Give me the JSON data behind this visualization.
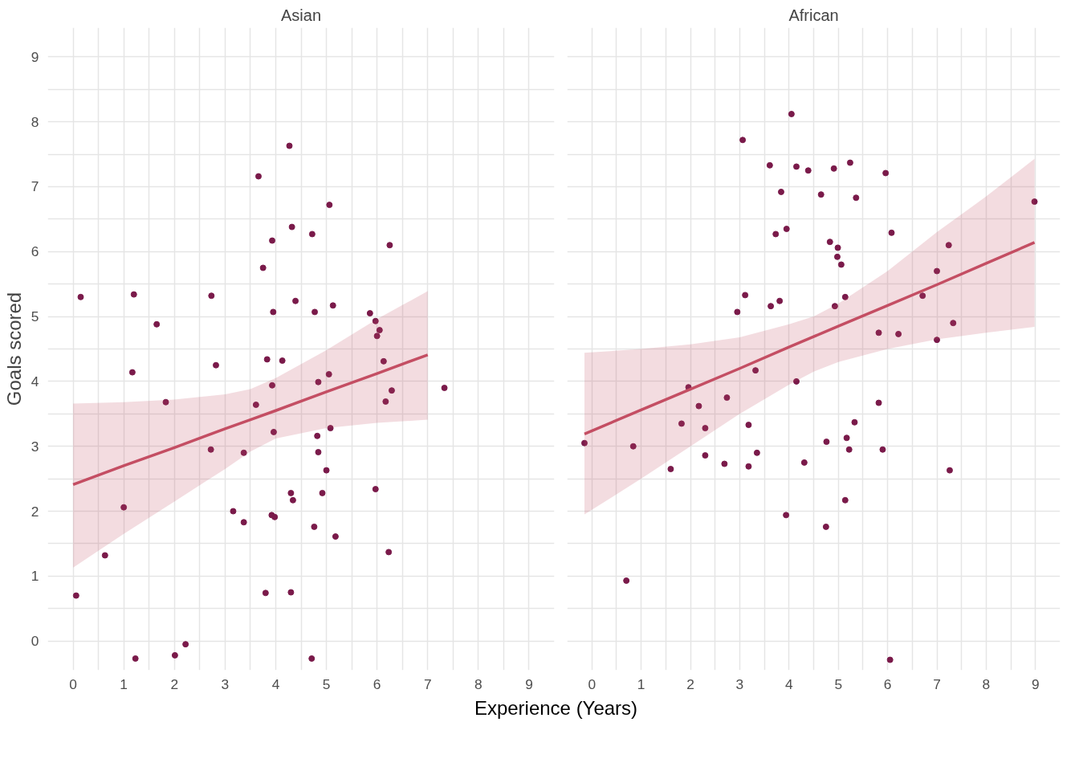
{
  "chart_data": [
    {
      "type": "scatter",
      "title": "Asian",
      "xlabel": "Experience (Years)",
      "ylabel": "Goals scored",
      "grid": true,
      "xlim": [
        -0.5,
        9.5
      ],
      "ylim": [
        -0.45,
        9.45
      ],
      "xticks": [
        0,
        {
          "value": 0.5,
          "label": null
        },
        1,
        {
          "value": 1.5,
          "label": null
        },
        2,
        {
          "value": 2.5,
          "label": null
        },
        3,
        {
          "value": 3.5,
          "label": null
        },
        4,
        {
          "value": 4.5,
          "label": null
        },
        5,
        {
          "value": 5.5,
          "label": null
        },
        6,
        {
          "value": 6.5,
          "label": null
        },
        7,
        {
          "value": 7.5,
          "label": null
        },
        8,
        {
          "value": 8.5,
          "label": null
        },
        9
      ],
      "yticks": [
        0,
        {
          "value": 0.5,
          "label": null
        },
        1,
        {
          "value": 1.5,
          "label": null
        },
        2,
        {
          "value": 2.5,
          "label": null
        },
        3,
        {
          "value": 3.5,
          "label": null
        },
        4,
        {
          "value": 4.5,
          "label": null
        },
        5,
        {
          "value": 5.5,
          "label": null
        },
        6,
        {
          "value": 6.5,
          "label": null
        },
        7,
        {
          "value": 7.5,
          "label": null
        },
        8,
        {
          "value": 8.5,
          "label": null
        },
        9
      ],
      "series": [
        {
          "marker": "circle",
          "color": "#7a1a4a",
          "x": [
            0.15,
            1.2,
            1.17,
            1.65,
            1.83,
            1.0,
            0.63,
            0.06,
            1.23,
            2.01,
            2.22,
            2.73,
            2.82,
            2.72,
            3.16,
            3.37,
            3.37,
            3.66,
            3.75,
            3.61,
            3.83,
            3.8,
            3.93,
            3.95,
            3.93,
            3.96,
            3.92,
            3.98,
            4.13,
            4.27,
            4.32,
            4.39,
            4.3,
            4.34,
            4.3,
            4.72,
            4.77,
            4.84,
            4.82,
            4.84,
            4.92,
            4.76,
            4.71,
            5.06,
            5.13,
            5.05,
            5.08,
            5.0,
            5.18,
            5.86,
            5.97,
            6.0,
            6.05,
            6.13,
            6.17,
            6.25,
            6.29,
            5.97,
            6.23,
            7.33
          ],
          "values": [
            5.3,
            5.34,
            4.14,
            4.88,
            3.68,
            2.06,
            1.32,
            0.7,
            -0.27,
            -0.22,
            -0.05,
            5.32,
            4.25,
            2.95,
            2.0,
            2.9,
            1.83,
            7.16,
            5.75,
            3.64,
            4.34,
            0.74,
            6.17,
            5.07,
            3.94,
            3.22,
            1.94,
            1.91,
            4.32,
            7.63,
            6.38,
            5.24,
            2.28,
            2.17,
            0.75,
            6.27,
            5.07,
            3.99,
            3.16,
            2.91,
            2.28,
            1.76,
            -0.27,
            6.72,
            5.17,
            4.11,
            3.28,
            2.63,
            1.61,
            5.05,
            4.93,
            4.7,
            4.79,
            4.31,
            3.69,
            6.1,
            3.86,
            2.34,
            1.37,
            3.9
          ]
        },
        {
          "type": "line",
          "color": "#c44e63",
          "x": [
            0,
            1,
            2,
            3,
            3.5,
            4,
            5,
            6,
            7
          ],
          "values": [
            2.41,
            2.7,
            2.98,
            3.27,
            3.41,
            3.55,
            3.84,
            4.12,
            4.41
          ],
          "lower": [
            1.13,
            1.65,
            2.15,
            2.65,
            2.92,
            3.12,
            3.28,
            3.36,
            3.41
          ],
          "upper": [
            3.66,
            3.68,
            3.72,
            3.8,
            3.88,
            4.05,
            4.48,
            4.96,
            5.39
          ]
        }
      ]
    },
    {
      "type": "scatter",
      "title": "African",
      "grid": true,
      "tick_labels": "x",
      "xlim": [
        -0.5,
        9.5
      ],
      "ylim": [
        -0.45,
        9.45
      ],
      "xticks": [
        0,
        {
          "value": 0.5,
          "label": null
        },
        1,
        {
          "value": 1.5,
          "label": null
        },
        2,
        {
          "value": 2.5,
          "label": null
        },
        3,
        {
          "value": 3.5,
          "label": null
        },
        4,
        {
          "value": 4.5,
          "label": null
        },
        5,
        {
          "value": 5.5,
          "label": null
        },
        6,
        {
          "value": 6.5,
          "label": null
        },
        7,
        {
          "value": 7.5,
          "label": null
        },
        8,
        {
          "value": 8.5,
          "label": null
        },
        9
      ],
      "yticks": [
        0,
        {
          "value": 0.5,
          "label": null
        },
        1,
        {
          "value": 1.5,
          "label": null
        },
        2,
        {
          "value": 2.5,
          "label": null
        },
        3,
        {
          "value": 3.5,
          "label": null
        },
        4,
        {
          "value": 4.5,
          "label": null
        },
        5,
        {
          "value": 5.5,
          "label": null
        },
        6,
        {
          "value": 6.5,
          "label": null
        },
        7,
        {
          "value": 7.5,
          "label": null
        },
        8,
        {
          "value": 8.5,
          "label": null
        },
        9
      ],
      "series": [
        {
          "marker": "circle",
          "color": "#7a1a4a",
          "x": [
            -0.15,
            0.7,
            0.84,
            1.6,
            1.82,
            1.96,
            2.17,
            2.3,
            2.3,
            2.69,
            2.74,
            2.95,
            3.06,
            3.11,
            3.32,
            3.18,
            3.18,
            3.35,
            3.61,
            3.63,
            3.73,
            3.81,
            3.84,
            3.95,
            3.94,
            4.05,
            4.15,
            4.15,
            4.39,
            4.31,
            4.65,
            4.76,
            4.75,
            4.83,
            4.91,
            4.93,
            4.99,
            4.98,
            5.06,
            5.14,
            5.17,
            5.22,
            5.14,
            5.24,
            5.36,
            5.33,
            5.82,
            5.82,
            5.9,
            5.96,
            6.08,
            6.22,
            6.05,
            6.71,
            7.0,
            7.0,
            7.24,
            7.33,
            7.26,
            8.98
          ],
          "values": [
            3.05,
            0.93,
            3.0,
            2.65,
            3.35,
            3.91,
            3.62,
            3.28,
            2.86,
            2.73,
            3.75,
            5.07,
            7.72,
            5.33,
            4.17,
            3.33,
            2.69,
            2.9,
            7.33,
            5.16,
            6.27,
            5.24,
            6.92,
            6.35,
            1.94,
            8.12,
            7.31,
            4.0,
            7.25,
            2.75,
            6.88,
            3.07,
            1.76,
            6.15,
            7.28,
            5.16,
            6.06,
            5.92,
            5.8,
            5.3,
            3.13,
            2.95,
            2.17,
            7.37,
            6.83,
            3.37,
            4.75,
            3.67,
            2.95,
            7.21,
            6.29,
            4.73,
            -0.29,
            5.32,
            5.7,
            4.64,
            6.1,
            4.9,
            2.63,
            6.77
          ]
        },
        {
          "type": "line",
          "color": "#c44e63",
          "x": [
            -0.15,
            1,
            2,
            3,
            4,
            4.5,
            5,
            6,
            7,
            8,
            8.98
          ],
          "values": [
            3.19,
            3.56,
            3.88,
            4.2,
            4.53,
            4.69,
            4.85,
            5.17,
            5.49,
            5.82,
            6.14
          ],
          "lower": [
            1.95,
            2.5,
            3.0,
            3.5,
            3.95,
            4.15,
            4.3,
            4.5,
            4.65,
            4.75,
            4.84
          ],
          "upper": [
            4.44,
            4.5,
            4.57,
            4.68,
            4.88,
            5.0,
            5.2,
            5.7,
            6.3,
            6.85,
            7.43
          ]
        }
      ]
    }
  ]
}
